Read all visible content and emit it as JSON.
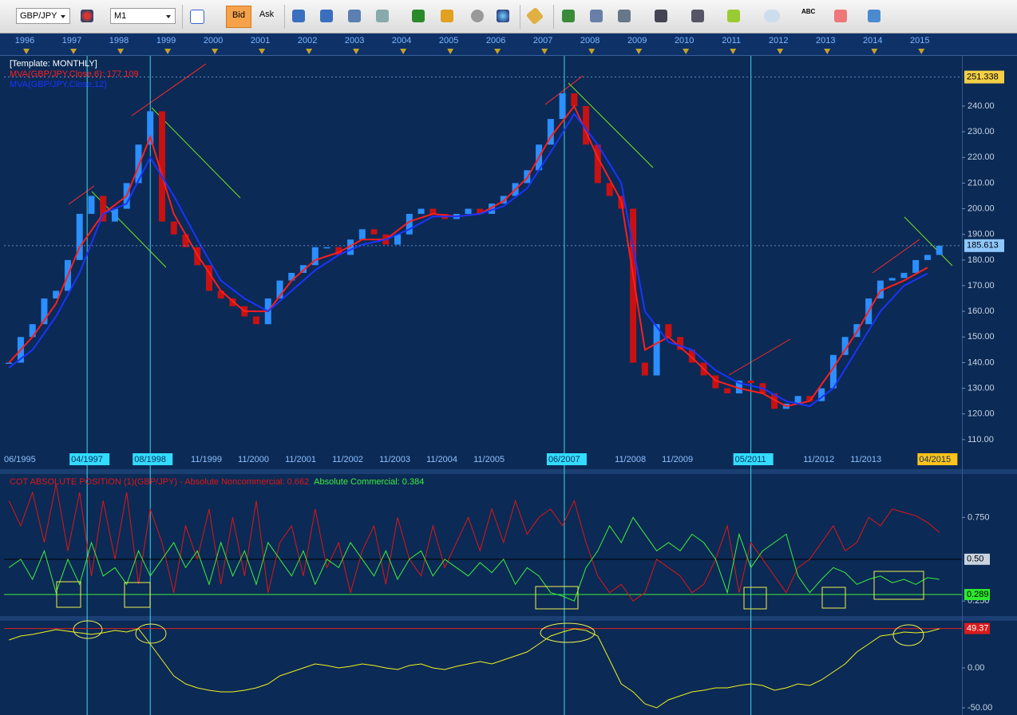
{
  "toolbar": {
    "symbol": "GBP/JPY",
    "timeframe": "M1",
    "bid": "Bid",
    "ask": "Ask",
    "abc_icon": "ABC"
  },
  "chart_data": [
    {
      "type": "candlestick",
      "title": "[Template: MONTHLY]",
      "xlim": [
        1995.525,
        2015.86
      ],
      "ylim": [
        105.6,
        259.6
      ],
      "up_color": "#2b8fff",
      "down_color": "#c81212",
      "x": [
        1995.63,
        1995.88,
        1996.13,
        1996.38,
        1996.63,
        1996.88,
        1997.13,
        1997.38,
        1997.63,
        1997.88,
        1998.13,
        1998.38,
        1998.63,
        1998.88,
        1999.13,
        1999.38,
        1999.63,
        1999.88,
        2000.13,
        2000.38,
        2000.63,
        2000.88,
        2001.13,
        2001.38,
        2001.63,
        2001.88,
        2002.13,
        2002.38,
        2002.63,
        2002.88,
        2003.13,
        2003.38,
        2003.63,
        2003.88,
        2004.13,
        2004.38,
        2004.63,
        2004.88,
        2005.13,
        2005.38,
        2005.63,
        2005.88,
        2006.13,
        2006.38,
        2006.63,
        2006.88,
        2007.13,
        2007.38,
        2007.63,
        2007.88,
        2008.13,
        2008.38,
        2008.63,
        2008.88,
        2009.13,
        2009.38,
        2009.63,
        2009.88,
        2010.13,
        2010.38,
        2010.63,
        2010.88,
        2011.13,
        2011.38,
        2011.63,
        2011.88,
        2012.13,
        2012.38,
        2012.63,
        2012.88,
        2013.13,
        2013.38,
        2013.63,
        2013.88,
        2014.13,
        2014.38,
        2014.63,
        2014.88,
        2015.13,
        2015.38
      ],
      "values": [
        140,
        150,
        155,
        165,
        168,
        180,
        198,
        205,
        195,
        200,
        210,
        225,
        238,
        195,
        190,
        185,
        178,
        168,
        165,
        162,
        158,
        155,
        165,
        172,
        175,
        178,
        185,
        185,
        182,
        188,
        192,
        190,
        186,
        190,
        198,
        200,
        198,
        196,
        198,
        200,
        198,
        202,
        205,
        210,
        215,
        225,
        235,
        245,
        240,
        225,
        210,
        205,
        200,
        140,
        135,
        155,
        150,
        145,
        140,
        135,
        130,
        128,
        133,
        132,
        128,
        122,
        124,
        127,
        125,
        130,
        143,
        150,
        155,
        165,
        172,
        173,
        175,
        180,
        182,
        185.6
      ],
      "series": [
        {
          "name": "MVA(GBP/JPY,Close,6): 177.109",
          "color": "#ff1e1e",
          "x": [
            1995.63,
            1996.13,
            1996.63,
            1997.13,
            1997.63,
            1998.13,
            1998.63,
            1999.13,
            1999.63,
            2000.13,
            2000.63,
            2001.13,
            2001.63,
            2002.13,
            2002.63,
            2003.13,
            2003.63,
            2004.13,
            2004.63,
            2005.13,
            2005.63,
            2006.13,
            2006.63,
            2007.13,
            2007.63,
            2008.13,
            2008.63,
            2009.13,
            2009.63,
            2010.13,
            2010.63,
            2011.13,
            2011.63,
            2012.13,
            2012.63,
            2013.13,
            2013.63,
            2014.13,
            2014.63,
            2015.13
          ],
          "values": [
            140,
            150,
            163,
            185,
            198,
            205,
            228,
            198,
            182,
            168,
            160,
            160,
            172,
            180,
            183,
            188,
            188,
            195,
            198,
            197,
            198,
            203,
            212,
            228,
            240,
            220,
            203,
            145,
            150,
            142,
            133,
            130,
            128,
            123,
            125,
            138,
            152,
            168,
            172,
            177.1
          ]
        },
        {
          "name": "MVA(GBP/JPY,Close,12)",
          "color": "#1a34ff",
          "x": [
            1995.63,
            1996.13,
            1996.63,
            1997.13,
            1997.63,
            1998.13,
            1998.63,
            1999.13,
            1999.63,
            2000.13,
            2000.63,
            2001.13,
            2001.63,
            2002.13,
            2002.63,
            2003.13,
            2003.63,
            2004.13,
            2004.63,
            2005.13,
            2005.63,
            2006.13,
            2006.63,
            2007.13,
            2007.63,
            2008.13,
            2008.63,
            2009.13,
            2009.63,
            2010.13,
            2010.63,
            2011.13,
            2011.63,
            2012.13,
            2012.63,
            2013.13,
            2013.63,
            2014.13,
            2014.63,
            2015.13
          ],
          "values": [
            138,
            145,
            158,
            175,
            198,
            202,
            220,
            205,
            188,
            172,
            165,
            160,
            168,
            176,
            182,
            186,
            188,
            192,
            197,
            197,
            198,
            201,
            208,
            222,
            237,
            225,
            210,
            160,
            148,
            145,
            137,
            132,
            130,
            125,
            123,
            130,
            145,
            160,
            170,
            174.8
          ]
        }
      ],
      "yticks": [
        {
          "value": 110,
          "label": "110.00"
        },
        {
          "value": 120,
          "label": "120.00"
        },
        {
          "value": 130,
          "label": "130.00"
        },
        {
          "value": 140,
          "label": "140.00"
        },
        {
          "value": 150,
          "label": "150.00"
        },
        {
          "value": 160,
          "label": "160.00"
        },
        {
          "value": 170,
          "label": "170.00"
        },
        {
          "value": 180,
          "label": "180.00"
        },
        {
          "value": 190,
          "label": "190.00"
        },
        {
          "value": 200,
          "label": "200.00"
        },
        {
          "value": 210,
          "label": "210.00"
        },
        {
          "value": 220,
          "label": "220.00"
        },
        {
          "value": 230,
          "label": "230.00"
        },
        {
          "value": 240,
          "label": "240.00"
        }
      ],
      "price_labels": [
        {
          "value": 251.338,
          "label": "251.338",
          "bg": "#f3cf45",
          "color": "#000000"
        },
        {
          "value": 185.613,
          "label": "185.613",
          "bg": "#8fc7ff",
          "color": "#000000"
        }
      ],
      "top_xticks": [
        1996,
        1997,
        1998,
        1999,
        2000,
        2001,
        2002,
        2003,
        2004,
        2005,
        2006,
        2007,
        2008,
        2009,
        2010,
        2011,
        2012,
        2013,
        2014,
        2015
      ],
      "date_labels": [
        {
          "value": 1995.42,
          "label": "06/1995"
        },
        {
          "value": 1997.29,
          "label": "04/1997",
          "bg": "#33dcff",
          "vline": true
        },
        {
          "value": 1998.63,
          "label": "08/1998",
          "bg": "#33dcff",
          "vline": true
        },
        {
          "value": 1999.83,
          "label": "11/1999"
        },
        {
          "value": 2000.83,
          "label": "11/2000"
        },
        {
          "value": 2001.83,
          "label": "11/2001"
        },
        {
          "value": 2002.83,
          "label": "11/2002"
        },
        {
          "value": 2003.83,
          "label": "11/2003"
        },
        {
          "value": 2004.83,
          "label": "11/2004"
        },
        {
          "value": 2005.83,
          "label": "11/2005"
        },
        {
          "value": 2007.42,
          "label": "06/2007",
          "bg": "#33dcff",
          "vline": true
        },
        {
          "value": 2008.83,
          "label": "11/2008"
        },
        {
          "value": 2009.83,
          "label": "11/2009"
        },
        {
          "value": 2011.38,
          "label": "05/2011",
          "bg": "#33dcff",
          "vline": true
        },
        {
          "value": 2012.83,
          "label": "11/2012"
        },
        {
          "value": 2013.83,
          "label": "11/2013"
        },
        {
          "value": 2015.29,
          "label": "04/2015",
          "bg": "#ffc21a"
        }
      ]
    },
    {
      "type": "line",
      "xlim": [
        1995.525,
        2015.86
      ],
      "ylim": [
        0.17,
        1.0
      ],
      "x": [
        1995.63,
        1995.88,
        1996.13,
        1996.38,
        1996.63,
        1996.88,
        1997.13,
        1997.38,
        1997.63,
        1997.88,
        1998.13,
        1998.38,
        1998.63,
        1998.88,
        1999.13,
        1999.38,
        1999.63,
        1999.88,
        2000.13,
        2000.38,
        2000.63,
        2000.88,
        2001.13,
        2001.38,
        2001.63,
        2001.88,
        2002.13,
        2002.38,
        2002.63,
        2002.88,
        2003.13,
        2003.38,
        2003.63,
        2003.88,
        2004.13,
        2004.38,
        2004.63,
        2004.88,
        2005.13,
        2005.38,
        2005.63,
        2005.88,
        2006.13,
        2006.38,
        2006.63,
        2006.88,
        2007.13,
        2007.38,
        2007.63,
        2007.88,
        2008.13,
        2008.38,
        2008.63,
        2008.88,
        2009.13,
        2009.38,
        2009.63,
        2009.88,
        2010.13,
        2010.38,
        2010.63,
        2010.88,
        2011.13,
        2011.38,
        2011.63,
        2011.88,
        2012.13,
        2012.38,
        2012.63,
        2012.88,
        2013.13,
        2013.38,
        2013.63,
        2013.88,
        2014.13,
        2014.38,
        2014.63,
        2014.88,
        2015.13,
        2015.38
      ],
      "series": [
        {
          "name": "COT ABSOLUTE POSITION (1)(GBP/JPY) -  Absolute Noncommercial: 0.662",
          "color": "#e01616",
          "values": [
            0.85,
            0.7,
            0.9,
            0.6,
            0.95,
            0.55,
            0.9,
            0.4,
            0.85,
            0.5,
            0.9,
            0.35,
            0.8,
            0.6,
            0.3,
            0.7,
            0.5,
            0.8,
            0.35,
            0.75,
            0.4,
            0.85,
            0.3,
            0.6,
            0.7,
            0.4,
            0.8,
            0.45,
            0.6,
            0.3,
            0.55,
            0.7,
            0.35,
            0.75,
            0.5,
            0.4,
            0.7,
            0.45,
            0.6,
            0.75,
            0.55,
            0.8,
            0.6,
            0.85,
            0.65,
            0.75,
            0.8,
            0.7,
            0.85,
            0.6,
            0.4,
            0.3,
            0.35,
            0.25,
            0.3,
            0.5,
            0.45,
            0.4,
            0.3,
            0.35,
            0.5,
            0.7,
            0.3,
            0.6,
            0.5,
            0.4,
            0.3,
            0.45,
            0.5,
            0.6,
            0.7,
            0.55,
            0.6,
            0.75,
            0.7,
            0.8,
            0.78,
            0.76,
            0.72,
            0.66
          ]
        },
        {
          "name": "Absolute Commercial: 0.384",
          "color": "#3cf03c",
          "values": [
            0.45,
            0.5,
            0.38,
            0.55,
            0.3,
            0.5,
            0.35,
            0.6,
            0.4,
            0.45,
            0.35,
            0.55,
            0.4,
            0.5,
            0.6,
            0.45,
            0.55,
            0.35,
            0.6,
            0.4,
            0.55,
            0.35,
            0.6,
            0.5,
            0.4,
            0.55,
            0.35,
            0.5,
            0.45,
            0.6,
            0.5,
            0.4,
            0.55,
            0.38,
            0.5,
            0.55,
            0.4,
            0.5,
            0.45,
            0.4,
            0.48,
            0.42,
            0.5,
            0.35,
            0.45,
            0.4,
            0.3,
            0.28,
            0.25,
            0.45,
            0.55,
            0.7,
            0.6,
            0.75,
            0.65,
            0.55,
            0.6,
            0.55,
            0.65,
            0.6,
            0.5,
            0.3,
            0.65,
            0.45,
            0.55,
            0.6,
            0.65,
            0.4,
            0.3,
            0.38,
            0.45,
            0.42,
            0.35,
            0.38,
            0.4,
            0.36,
            0.38,
            0.35,
            0.39,
            0.38
          ]
        }
      ],
      "yticks": [
        {
          "value": 0.25,
          "label": "0.250"
        },
        {
          "value": 0.75,
          "label": "0.750"
        }
      ],
      "ref_lines": [
        {
          "value": 0.5,
          "label": "0.50",
          "line": "#000000",
          "bg": "#c9d3e0",
          "color": "#000000"
        },
        {
          "value": 0.289,
          "label": "0.289",
          "line": "#3cf03c",
          "bg": "#2ee82e",
          "color": "#000000"
        }
      ]
    },
    {
      "type": "line",
      "xlim": [
        1995.525,
        2015.86
      ],
      "ylim": [
        -59,
        57
      ],
      "x": [
        1995.63,
        1995.88,
        1996.13,
        1996.38,
        1996.63,
        1996.88,
        1997.13,
        1997.38,
        1997.63,
        1997.88,
        1998.13,
        1998.38,
        1998.63,
        1998.88,
        1999.13,
        1999.38,
        1999.63,
        1999.88,
        2000.13,
        2000.38,
        2000.63,
        2000.88,
        2001.13,
        2001.38,
        2001.63,
        2001.88,
        2002.13,
        2002.38,
        2002.63,
        2002.88,
        2003.13,
        2003.38,
        2003.63,
        2003.88,
        2004.13,
        2004.38,
        2004.63,
        2004.88,
        2005.13,
        2005.38,
        2005.63,
        2005.88,
        2006.13,
        2006.38,
        2006.63,
        2006.88,
        2007.13,
        2007.38,
        2007.63,
        2007.88,
        2008.13,
        2008.38,
        2008.63,
        2008.88,
        2009.13,
        2009.38,
        2009.63,
        2009.88,
        2010.13,
        2010.38,
        2010.63,
        2010.88,
        2011.13,
        2011.38,
        2011.63,
        2011.88,
        2012.13,
        2012.38,
        2012.63,
        2012.88,
        2013.13,
        2013.38,
        2013.63,
        2013.88,
        2014.13,
        2014.38,
        2014.63,
        2014.88,
        2015.13,
        2015.38
      ],
      "series": [
        {
          "color": "#f2f21e",
          "values": [
            35,
            40,
            42,
            45,
            48,
            46,
            44,
            42,
            44,
            47,
            45,
            49,
            30,
            10,
            -10,
            -20,
            -25,
            -28,
            -30,
            -30,
            -28,
            -25,
            -20,
            -10,
            -5,
            0,
            5,
            3,
            0,
            2,
            5,
            3,
            0,
            -2,
            3,
            5,
            0,
            -2,
            2,
            5,
            8,
            5,
            10,
            15,
            20,
            30,
            40,
            45,
            49,
            47,
            40,
            10,
            -20,
            -30,
            -45,
            -50,
            -40,
            -35,
            -30,
            -28,
            -25,
            -25,
            -22,
            -20,
            -22,
            -28,
            -25,
            -20,
            -22,
            -15,
            -5,
            5,
            20,
            30,
            40,
            42,
            45,
            44,
            45,
            49
          ]
        }
      ],
      "yticks": [
        {
          "value": 0,
          "label": "0.00"
        },
        {
          "value": -50,
          "label": "-50.00"
        }
      ],
      "ref_lines": [
        {
          "value": 49.37,
          "label": "49.37",
          "line": "#e02020",
          "bg": "#d81b1b",
          "color": "#ffffff"
        }
      ]
    }
  ]
}
